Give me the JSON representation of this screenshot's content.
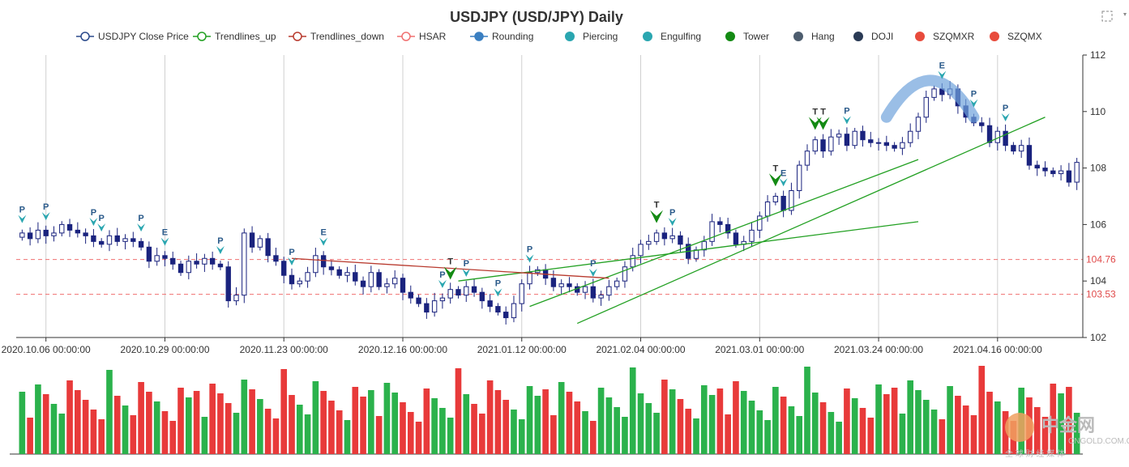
{
  "chart_data": {
    "type": "candlestick",
    "title": "USDJPY (USD/JPY) Daily",
    "legend": [
      {
        "name": "USDJPY Close Price",
        "color": "#2b4a8b",
        "shape": "line-circle"
      },
      {
        "name": "Trendlines_up",
        "color": "#22a022",
        "shape": "line-circle"
      },
      {
        "name": "Trendlines_down",
        "color": "#b83a2e",
        "shape": "line-circle"
      },
      {
        "name": "HSAR",
        "color": "#f07070",
        "shape": "line-circle"
      },
      {
        "name": "Rounding",
        "color": "#3a7fc1",
        "shape": "line-dot"
      },
      {
        "name": "Piercing",
        "color": "#2aa6b0",
        "shape": "dot"
      },
      {
        "name": "Engulfing",
        "color": "#2aa6b0",
        "shape": "dot"
      },
      {
        "name": "Tower",
        "color": "#138a13",
        "shape": "dot"
      },
      {
        "name": "Hang",
        "color": "#4d5d6e",
        "shape": "dot"
      },
      {
        "name": "DOJI",
        "color": "#2a3a55",
        "shape": "dot"
      },
      {
        "name": "SZQMXR",
        "color": "#e84b3c",
        "shape": "dot"
      },
      {
        "name": "SZQMX",
        "color": "#e84b3c",
        "shape": "dot"
      }
    ],
    "x_tick_labels": [
      "2020.10.06 00:00:00",
      "2020.10.29 00:00:00",
      "2020.11.23 00:00:00",
      "2020.12.16 00:00:00",
      "2021.01.12 00:00:00",
      "2021.02.04 00:00:00",
      "2021.03.01 00:00:00",
      "2021.03.24 00:00:00",
      "2021.04.16 00:00:00"
    ],
    "x_tick_index": [
      3,
      18,
      33,
      48,
      63,
      78,
      93,
      108,
      123
    ],
    "ylim": [
      102,
      112
    ],
    "y_ticks": [
      102,
      104,
      106,
      108,
      110,
      112
    ],
    "hsar_levels": [
      {
        "value": 104.76,
        "label": "104.76"
      },
      {
        "value": 103.53,
        "label": "103.53"
      }
    ],
    "closes": [
      105.7,
      105.5,
      105.8,
      105.6,
      105.7,
      106.0,
      105.8,
      105.7,
      105.6,
      105.4,
      105.3,
      105.6,
      105.4,
      105.5,
      105.4,
      105.2,
      104.7,
      104.9,
      104.8,
      104.6,
      104.3,
      104.7,
      104.6,
      104.8,
      104.6,
      104.5,
      103.3,
      103.5,
      105.7,
      105.2,
      105.5,
      104.9,
      104.7,
      104.2,
      103.9,
      104.0,
      104.3,
      104.9,
      104.5,
      104.4,
      104.2,
      104.3,
      104.0,
      103.8,
      104.3,
      103.8,
      103.9,
      104.1,
      103.6,
      103.4,
      103.2,
      102.9,
      103.3,
      103.4,
      103.7,
      103.5,
      103.8,
      103.6,
      103.3,
      103.1,
      102.9,
      102.7,
      103.2,
      103.9,
      104.3,
      104.4,
      104.1,
      103.8,
      103.9,
      103.8,
      103.6,
      103.8,
      103.4,
      103.5,
      103.8,
      104.0,
      104.5,
      104.9,
      105.3,
      105.4,
      105.7,
      105.5,
      105.6,
      105.3,
      104.8,
      105.1,
      105.4,
      106.1,
      106.0,
      105.7,
      105.3,
      105.4,
      105.8,
      106.3,
      106.8,
      107.0,
      106.5,
      107.2,
      108.1,
      108.6,
      109.0,
      108.6,
      109.1,
      109.2,
      108.8,
      109.3,
      109.0,
      108.9,
      108.9,
      108.8,
      108.7,
      108.9,
      109.3,
      109.8,
      110.5,
      110.8,
      110.6,
      110.8,
      110.2,
      109.8,
      109.6,
      109.5,
      108.9,
      109.3,
      108.8,
      108.6,
      108.8,
      108.1,
      108.0,
      107.9,
      107.8,
      107.9,
      107.5,
      108.2
    ]
  },
  "markers": [
    {
      "label": "P",
      "i": 0,
      "kind": "Piercing"
    },
    {
      "label": "P",
      "i": 3,
      "kind": "Piercing"
    },
    {
      "label": "P",
      "i": 9,
      "kind": "Piercing"
    },
    {
      "label": "P",
      "i": 10,
      "kind": "Piercing"
    },
    {
      "label": "P",
      "i": 15,
      "kind": "Piercing"
    },
    {
      "label": "E",
      "i": 18,
      "kind": "Engulfing"
    },
    {
      "label": "P",
      "i": 25,
      "kind": "Piercing"
    },
    {
      "label": "P",
      "i": 34,
      "kind": "Piercing"
    },
    {
      "label": "E",
      "i": 38,
      "kind": "Engulfing"
    },
    {
      "label": "P",
      "i": 53,
      "kind": "Piercing"
    },
    {
      "label": "T",
      "i": 54,
      "kind": "Tower"
    },
    {
      "label": "P",
      "i": 56,
      "kind": "Piercing"
    },
    {
      "label": "P",
      "i": 60,
      "kind": "Piercing"
    },
    {
      "label": "P",
      "i": 64,
      "kind": "Piercing"
    },
    {
      "label": "P",
      "i": 72,
      "kind": "Piercing"
    },
    {
      "label": "T",
      "i": 80,
      "kind": "Tower"
    },
    {
      "label": "P",
      "i": 82,
      "kind": "Piercing"
    },
    {
      "label": "T",
      "i": 95,
      "kind": "Tower"
    },
    {
      "label": "E",
      "i": 96,
      "kind": "Engulfing"
    },
    {
      "label": "T",
      "i": 100,
      "kind": "Tower"
    },
    {
      "label": "T",
      "i": 101,
      "kind": "Tower"
    },
    {
      "label": "P",
      "i": 104,
      "kind": "Piercing"
    },
    {
      "label": "E",
      "i": 116,
      "kind": "Engulfing"
    },
    {
      "label": "P",
      "i": 120,
      "kind": "Piercing"
    },
    {
      "label": "P",
      "i": 124,
      "kind": "Piercing"
    }
  ],
  "trendlines_up": [
    {
      "i1": 64,
      "v1": 103.1,
      "i2": 113,
      "v2": 108.3
    },
    {
      "i1": 70,
      "v1": 102.5,
      "i2": 129,
      "v2": 109.8
    },
    {
      "i1": 55,
      "v1": 104.0,
      "i2": 113,
      "v2": 106.1
    }
  ],
  "trendlines_down": [
    {
      "i1": 34,
      "v1": 104.8,
      "i2": 74,
      "v2": 104.1
    }
  ],
  "rounding": {
    "from": 109.8,
    "peak": 111.1,
    "i1": 109,
    "i2": 120
  },
  "watermark": {
    "brand": "中金网",
    "sub": "CNGOLD.COM.CN",
    "tagline": "全 球 财 经 媒 体"
  },
  "colors": {
    "up": "#ffffff",
    "down": "#1a237e",
    "vol_up": "#2bb24c",
    "vol_down": "#e83a3a",
    "hsar": "#f07070"
  }
}
